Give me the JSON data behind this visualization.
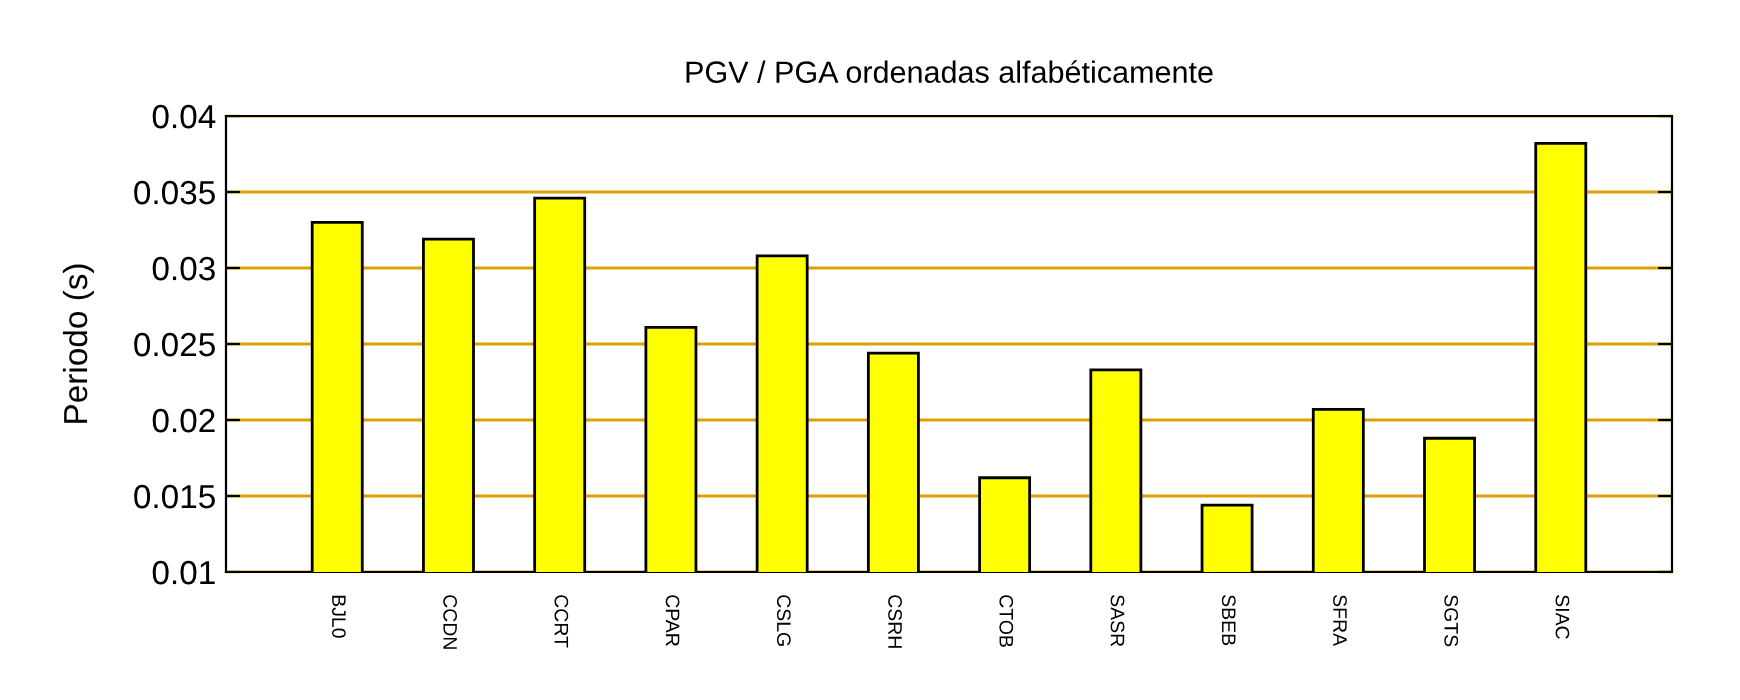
{
  "chart_data": {
    "type": "bar",
    "title": "PGV / PGA ordenadas alfabéticamente",
    "ylabel": "Periodo (s)",
    "categories": [
      "BJL0",
      "CCDN",
      "CCRT",
      "CPAR",
      "CSLG",
      "CSRH",
      "CTOB",
      "SASR",
      "SBEB",
      "SFRA",
      "SGTS",
      "SIAC"
    ],
    "values": [
      0.033,
      0.0319,
      0.0346,
      0.0261,
      0.0308,
      0.0244,
      0.0162,
      0.0233,
      0.0144,
      0.0207,
      0.0188,
      0.0382
    ],
    "color": "#ffff00",
    "ylim": [
      0.01,
      0.04
    ],
    "yticks": [
      0.01,
      0.015,
      0.02,
      0.025,
      0.03,
      0.035,
      0.04
    ],
    "grid": "y",
    "legend": false
  }
}
